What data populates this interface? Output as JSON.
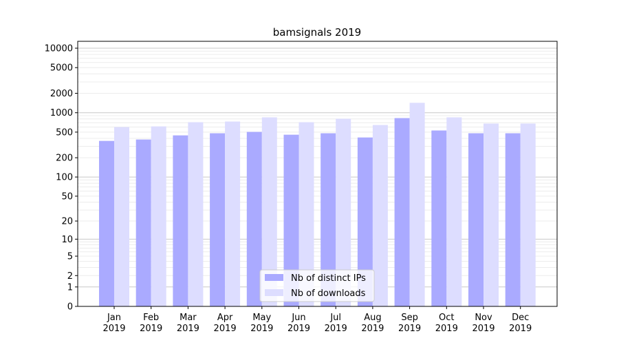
{
  "chart_data": {
    "type": "bar",
    "title": "bamsignals 2019",
    "xlabel": "",
    "ylabel": "",
    "yscale": "symlog",
    "ylim": [
      0,
      10000
    ],
    "yticks": [
      0,
      1,
      2,
      5,
      10,
      20,
      50,
      100,
      200,
      500,
      1000,
      2000,
      5000,
      10000
    ],
    "grid": true,
    "legend_position": "bottom-center",
    "categories": [
      [
        "Jan",
        "2019"
      ],
      [
        "Feb",
        "2019"
      ],
      [
        "Mar",
        "2019"
      ],
      [
        "Apr",
        "2019"
      ],
      [
        "May",
        "2019"
      ],
      [
        "Jun",
        "2019"
      ],
      [
        "Jul",
        "2019"
      ],
      [
        "Aug",
        "2019"
      ],
      [
        "Sep",
        "2019"
      ],
      [
        "Oct",
        "2019"
      ],
      [
        "Nov",
        "2019"
      ],
      [
        "Dec",
        "2019"
      ]
    ],
    "series": [
      {
        "name": "Nb of distinct IPs",
        "color": "#aaaaff",
        "values": [
          365,
          384,
          445,
          480,
          504,
          456,
          480,
          413,
          826,
          530,
          480,
          480
        ]
      },
      {
        "name": "Nb of downloads",
        "color": "#ddddff",
        "values": [
          599,
          614,
          713,
          730,
          848,
          713,
          806,
          645,
          1425,
          848,
          678,
          679
        ]
      }
    ]
  }
}
